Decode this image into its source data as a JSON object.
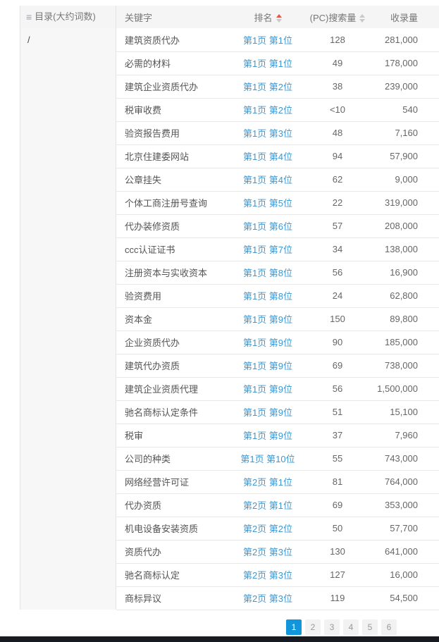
{
  "sidebar": {
    "title": "目录(大约词数)",
    "items": [
      {
        "label": "/"
      }
    ]
  },
  "table": {
    "columns": {
      "keyword": "关键字",
      "rank": "排名",
      "search_volume": "(PC)搜索量",
      "index_volume": "收录量"
    },
    "sort_state": {
      "rank": "ascending",
      "search_volume": "none"
    },
    "rows": [
      {
        "keyword": "建筑资质代办",
        "rank": "第1页 第1位",
        "search_volume": "128",
        "index_volume": "281,000"
      },
      {
        "keyword": "必需的材料",
        "rank": "第1页 第1位",
        "search_volume": "49",
        "index_volume": "178,000"
      },
      {
        "keyword": "建筑企业资质代办",
        "rank": "第1页 第2位",
        "search_volume": "38",
        "index_volume": "239,000"
      },
      {
        "keyword": "税审收费",
        "rank": "第1页 第2位",
        "search_volume": "<10",
        "index_volume": "540"
      },
      {
        "keyword": "验资报告费用",
        "rank": "第1页 第3位",
        "search_volume": "48",
        "index_volume": "7,160"
      },
      {
        "keyword": "北京住建委网站",
        "rank": "第1页 第4位",
        "search_volume": "94",
        "index_volume": "57,900"
      },
      {
        "keyword": "公章挂失",
        "rank": "第1页 第4位",
        "search_volume": "62",
        "index_volume": "9,000"
      },
      {
        "keyword": "个体工商注册号查询",
        "rank": "第1页 第5位",
        "search_volume": "22",
        "index_volume": "319,000"
      },
      {
        "keyword": "代办装修资质",
        "rank": "第1页 第6位",
        "search_volume": "57",
        "index_volume": "208,000"
      },
      {
        "keyword": "ccc认证证书",
        "rank": "第1页 第7位",
        "search_volume": "34",
        "index_volume": "138,000"
      },
      {
        "keyword": "注册资本与实收资本",
        "rank": "第1页 第8位",
        "search_volume": "56",
        "index_volume": "16,900"
      },
      {
        "keyword": "验资费用",
        "rank": "第1页 第8位",
        "search_volume": "24",
        "index_volume": "62,800"
      },
      {
        "keyword": "资本金",
        "rank": "第1页 第9位",
        "search_volume": "150",
        "index_volume": "89,800"
      },
      {
        "keyword": "企业资质代办",
        "rank": "第1页 第9位",
        "search_volume": "90",
        "index_volume": "185,000"
      },
      {
        "keyword": "建筑代办资质",
        "rank": "第1页 第9位",
        "search_volume": "69",
        "index_volume": "738,000"
      },
      {
        "keyword": "建筑企业资质代理",
        "rank": "第1页 第9位",
        "search_volume": "56",
        "index_volume": "1,500,000"
      },
      {
        "keyword": "驰名商标认定条件",
        "rank": "第1页 第9位",
        "search_volume": "51",
        "index_volume": "15,100"
      },
      {
        "keyword": "税审",
        "rank": "第1页 第9位",
        "search_volume": "37",
        "index_volume": "7,960"
      },
      {
        "keyword": "公司的种类",
        "rank": "第1页 第10位",
        "search_volume": "55",
        "index_volume": "743,000"
      },
      {
        "keyword": "网络经营许可证",
        "rank": "第2页 第1位",
        "search_volume": "81",
        "index_volume": "764,000"
      },
      {
        "keyword": "代办资质",
        "rank": "第2页 第1位",
        "search_volume": "69",
        "index_volume": "353,000"
      },
      {
        "keyword": "机电设备安装资质",
        "rank": "第2页 第2位",
        "search_volume": "50",
        "index_volume": "57,700"
      },
      {
        "keyword": "资质代办",
        "rank": "第2页 第3位",
        "search_volume": "130",
        "index_volume": "641,000"
      },
      {
        "keyword": "驰名商标认定",
        "rank": "第2页 第3位",
        "search_volume": "127",
        "index_volume": "16,000"
      },
      {
        "keyword": "商标异议",
        "rank": "第2页 第3位",
        "search_volume": "119",
        "index_volume": "54,500"
      }
    ]
  },
  "pagination": {
    "pages": [
      "1",
      "2",
      "3",
      "4",
      "5",
      "6"
    ],
    "active": "1"
  },
  "colors": {
    "link_color": "#3e97d1",
    "sort_active_color": "#e8554d",
    "active_page_bg": "#1296db",
    "header_bg": "#f5f5f5",
    "bottom_bar_bg": "#171a20"
  }
}
